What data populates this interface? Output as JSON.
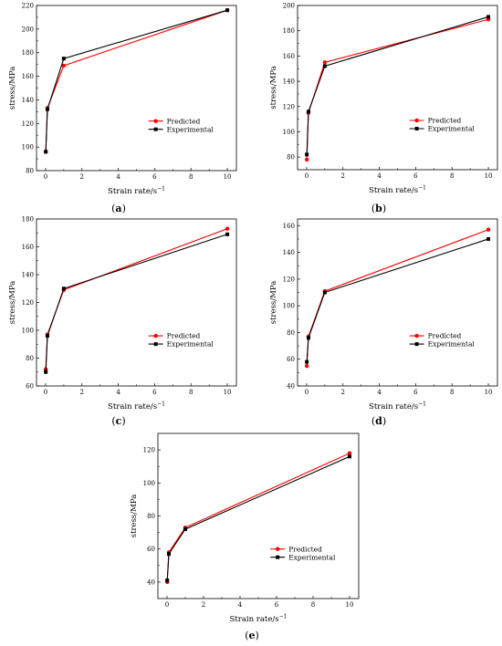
{
  "colors": {
    "predicted": "#ff0000",
    "experimental": "#000000",
    "axis": "#000000"
  },
  "chart_data": [
    {
      "type": "line",
      "caption": "(a)",
      "xlabel": "Strain rate/s",
      "xlabel_sup": "−1",
      "ylabel": "stress/MPa",
      "xlim": [
        -0.5,
        10.5
      ],
      "ylim": [
        80,
        220
      ],
      "xticks": [
        0,
        2,
        4,
        6,
        8,
        10
      ],
      "yticks": [
        80,
        100,
        120,
        140,
        160,
        180,
        200,
        220
      ],
      "x": [
        0.01,
        0.1,
        1,
        10
      ],
      "series": [
        {
          "name": "Predicted",
          "values": [
            96,
            133,
            169,
            216
          ]
        },
        {
          "name": "Experimental",
          "values": [
            96,
            132,
            175,
            216
          ]
        }
      ],
      "legend": "bottom-right",
      "grid": false
    },
    {
      "type": "line",
      "caption": "(b)",
      "xlabel": "Strain rate/s",
      "xlabel_sup": "−1",
      "ylabel": "stress/MPa",
      "xlim": [
        -0.5,
        10.5
      ],
      "ylim": [
        70,
        200
      ],
      "xticks": [
        0,
        2,
        4,
        6,
        8,
        10
      ],
      "yticks": [
        80,
        100,
        120,
        140,
        160,
        180,
        200
      ],
      "x": [
        0.01,
        0.1,
        1,
        10
      ],
      "series": [
        {
          "name": "Predicted",
          "values": [
            78,
            115,
            155,
            189
          ]
        },
        {
          "name": "Experimental",
          "values": [
            82,
            116,
            152,
            191
          ]
        }
      ],
      "legend": "bottom-right",
      "grid": false
    },
    {
      "type": "line",
      "caption": "(c)",
      "xlabel": "Strain rate/s",
      "xlabel_sup": "−1",
      "ylabel": "stress/MPa",
      "xlim": [
        -0.5,
        10.5
      ],
      "ylim": [
        60,
        180
      ],
      "xticks": [
        0,
        2,
        4,
        6,
        8,
        10
      ],
      "yticks": [
        60,
        80,
        100,
        120,
        140,
        160,
        180
      ],
      "x": [
        0.01,
        0.1,
        1,
        10
      ],
      "series": [
        {
          "name": "Predicted",
          "values": [
            72,
            97,
            129,
            173
          ]
        },
        {
          "name": "Experimental",
          "values": [
            70,
            96,
            130,
            169
          ]
        }
      ],
      "legend": "bottom-right",
      "grid": false
    },
    {
      "type": "line",
      "caption": "(d)",
      "xlabel": "Strain rate/s",
      "xlabel_sup": "−1",
      "ylabel": "stress/MPa",
      "xlim": [
        -0.5,
        10.5
      ],
      "ylim": [
        40,
        165
      ],
      "xticks": [
        0,
        2,
        4,
        6,
        8,
        10
      ],
      "yticks": [
        40,
        60,
        80,
        100,
        120,
        140,
        160
      ],
      "x": [
        0.01,
        0.1,
        1,
        10
      ],
      "series": [
        {
          "name": "Predicted",
          "values": [
            55,
            77,
            111,
            157
          ]
        },
        {
          "name": "Experimental",
          "values": [
            58,
            76,
            110,
            150
          ]
        }
      ],
      "legend": "bottom-right",
      "grid": false
    },
    {
      "type": "line",
      "caption": "(e)",
      "xlabel": "Strain rate/s",
      "xlabel_sup": "−1",
      "ylabel": "stress/MPa",
      "xlim": [
        -0.5,
        10.5
      ],
      "ylim": [
        30,
        130
      ],
      "xticks": [
        0,
        2,
        4,
        6,
        8,
        10
      ],
      "yticks": [
        40,
        60,
        80,
        100,
        120
      ],
      "x": [
        0.01,
        0.1,
        1,
        10
      ],
      "series": [
        {
          "name": "Predicted",
          "values": [
            40,
            58,
            73,
            118
          ]
        },
        {
          "name": "Experimental",
          "values": [
            41,
            57,
            72,
            116
          ]
        }
      ],
      "legend": "bottom-right",
      "grid": false
    }
  ]
}
